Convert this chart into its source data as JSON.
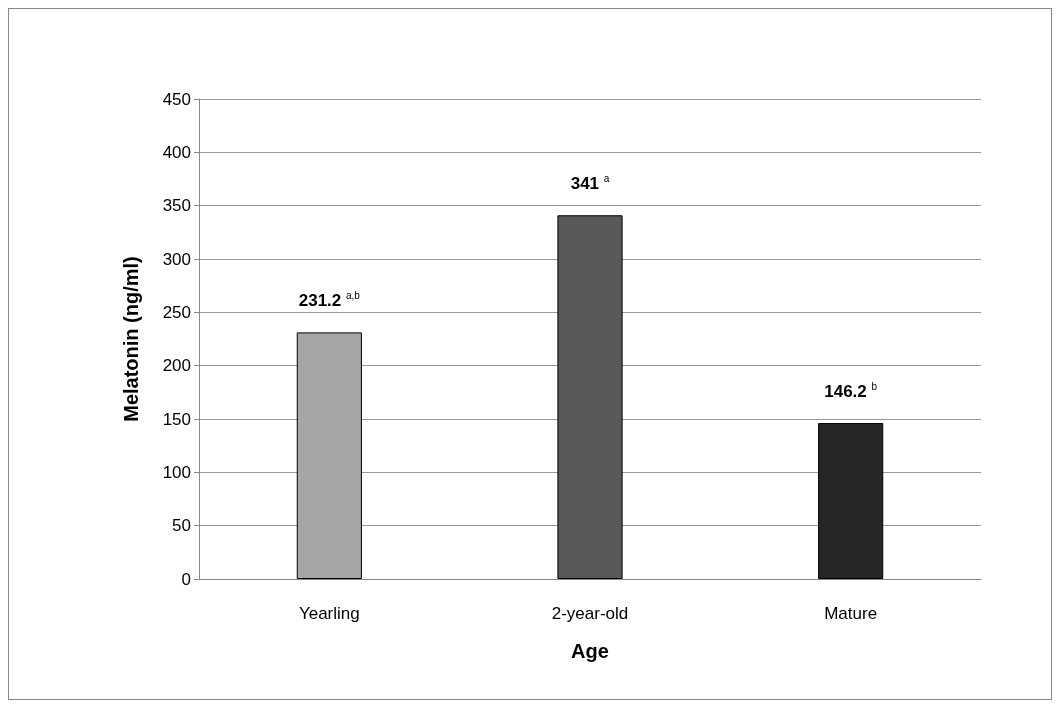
{
  "chart_data": {
    "type": "bar",
    "xlabel": "Age",
    "ylabel": "Melatonin (ng/ml)",
    "categories": [
      "Yearling",
      "2-year-old",
      "Mature"
    ],
    "values": [
      231.2,
      341,
      146.2
    ],
    "colors": [
      "#a6a6a6",
      "#595959",
      "#262626"
    ],
    "value_labels": [
      "231.2 $^{a,b}$",
      "341 $^{a}$",
      "146.2 $^{b}$"
    ],
    "ylim": [
      0,
      450
    ],
    "yticks": [
      0,
      50,
      100,
      150,
      200,
      250,
      300,
      350,
      400,
      450
    ],
    "grid": "y"
  }
}
